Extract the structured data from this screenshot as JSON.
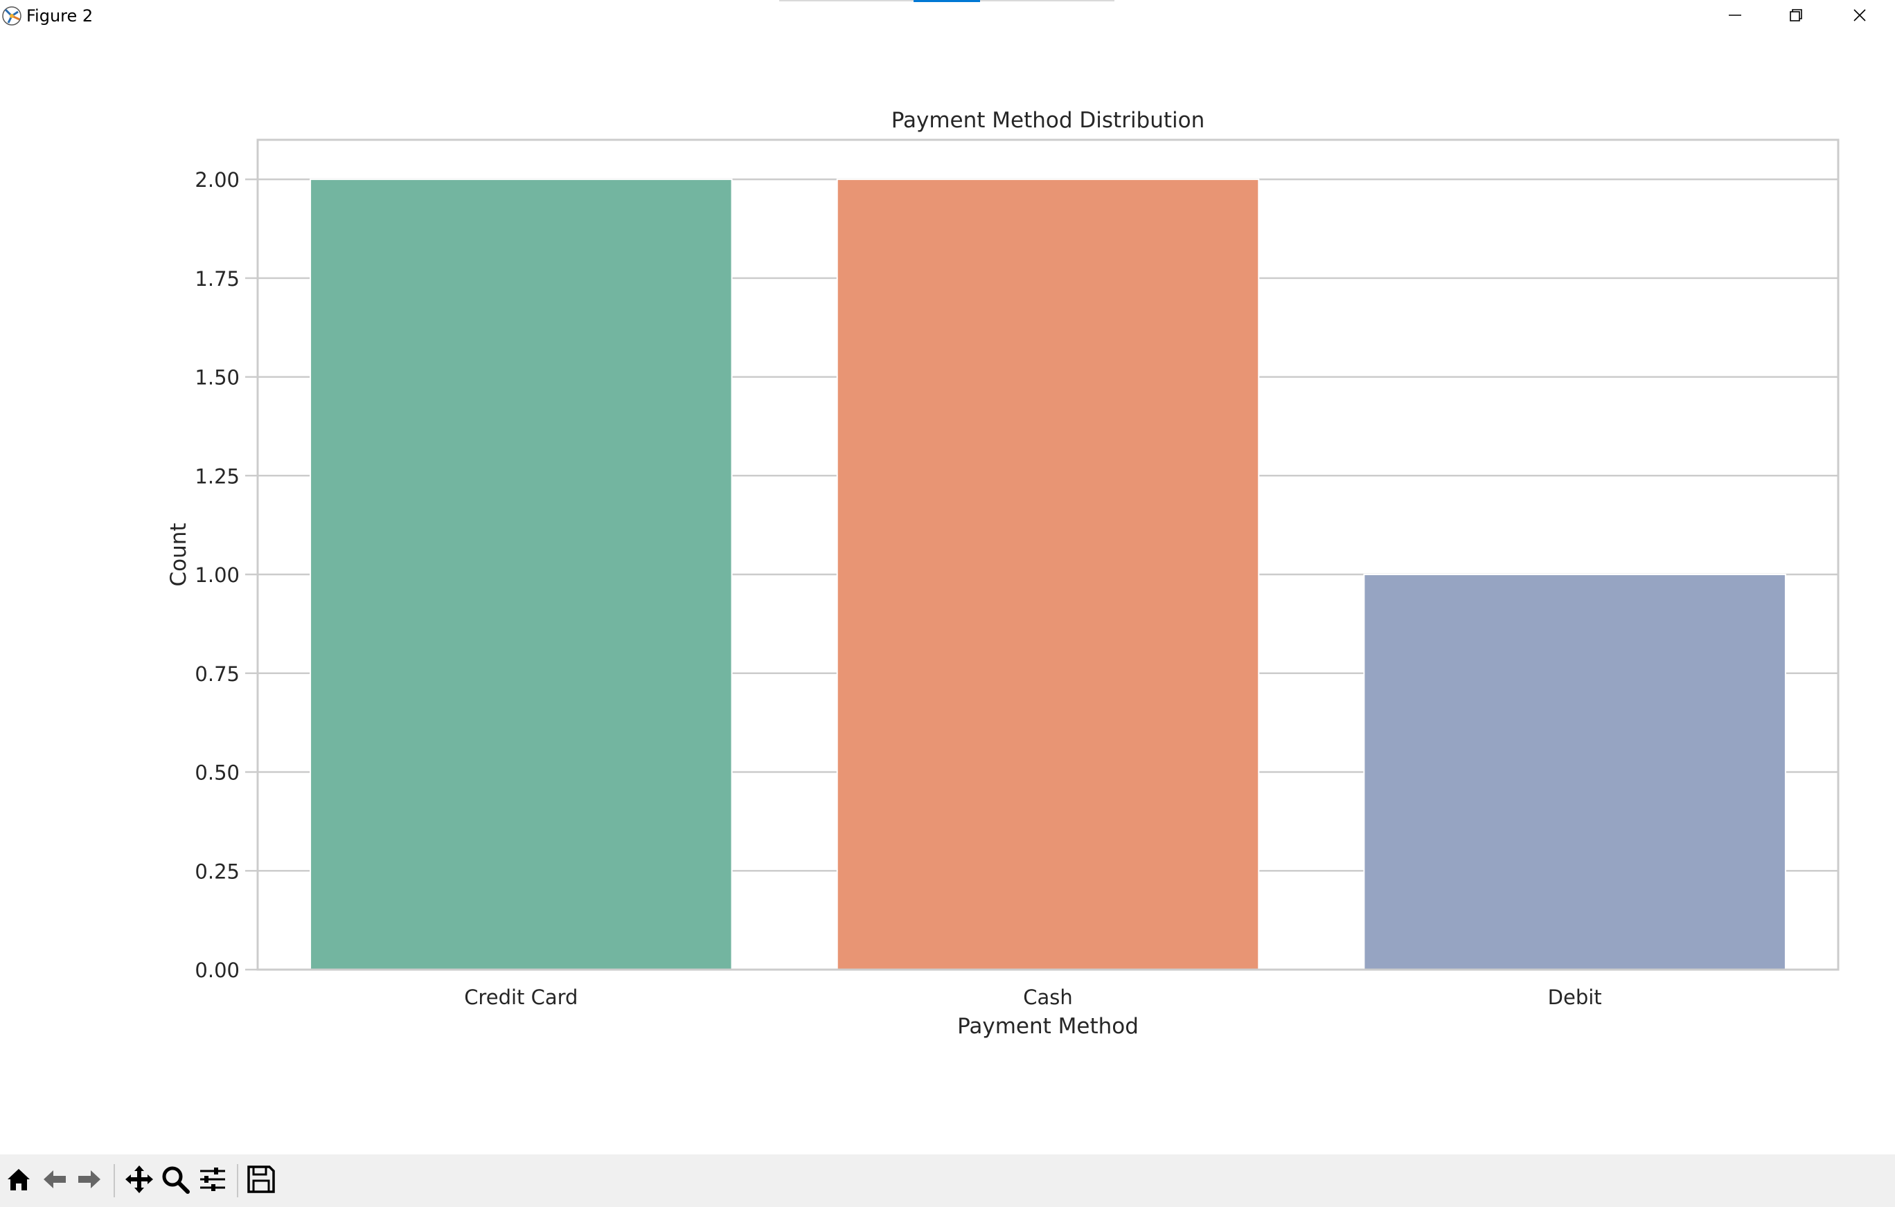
{
  "window": {
    "title": "Figure 2",
    "controls": [
      "minimize-icon",
      "restore-icon",
      "close-icon"
    ]
  },
  "toolbar": {
    "tools": [
      "home-icon",
      "back-arrow-icon",
      "forward-arrow-icon",
      "pan-icon",
      "zoom-icon",
      "configure-subplots-icon",
      "save-icon"
    ]
  },
  "chart_data": {
    "type": "bar",
    "title": "Payment Method Distribution",
    "xlabel": "Payment Method",
    "ylabel": "Count",
    "categories": [
      "Credit Card",
      "Cash",
      "Debit"
    ],
    "values": [
      2,
      2,
      1
    ],
    "colors": [
      "#73b5a0",
      "#e89574",
      "#96a4c2"
    ],
    "ylim": [
      0,
      2.1
    ],
    "yticks": [
      0,
      0.25,
      0.5,
      0.75,
      1.0,
      1.25,
      1.5,
      1.75,
      2.0
    ],
    "ytick_labels": [
      "0.00",
      "0.25",
      "0.50",
      "0.75",
      "1.00",
      "1.25",
      "1.50",
      "1.75",
      "2.00"
    ],
    "grid": true,
    "grid_axis": "y",
    "legend": "none"
  }
}
